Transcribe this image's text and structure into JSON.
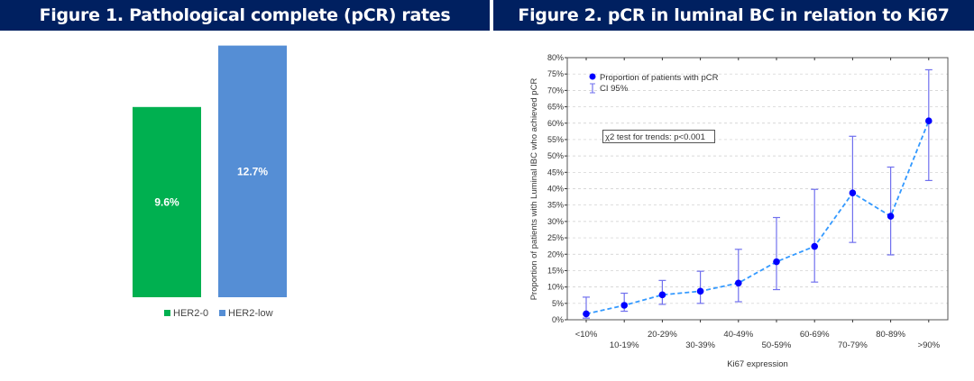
{
  "figure1": {
    "title": "Figure 1. Pathological complete (pCR) rates",
    "chart_data": {
      "type": "bar",
      "categories": [
        "HER2-0",
        "HER2-low"
      ],
      "values": [
        9.6,
        12.7
      ],
      "data_labels": [
        "9.6%",
        "12.7%"
      ],
      "colors": [
        "#00b050",
        "#558ed5"
      ],
      "legend": [
        "HER2-0",
        "HER2-low"
      ],
      "legend_position": "bottom",
      "grid": false
    }
  },
  "figure2": {
    "title": "Figure 2. pCR in luminal BC in relation to Ki67",
    "chart_data": {
      "type": "line",
      "xlabel": "Ki67 expression",
      "ylabel": "Proportion of patients with Luminal IBC who achieved pCR",
      "ylim": [
        0,
        80
      ],
      "yticks": [
        "0%",
        "5%",
        "10%",
        "15%",
        "20%",
        "25%",
        "30%",
        "35%",
        "40%",
        "45%",
        "50%",
        "55%",
        "60%",
        "65%",
        "70%",
        "75%",
        "80%"
      ],
      "categories": [
        "<10%",
        "10-19%",
        "20-29%",
        "30-39%",
        "40-49%",
        "50-59%",
        "60-69%",
        "70-79%",
        "80-89%",
        ">90%"
      ],
      "series": [
        {
          "name": "Proportion of patients with pCR",
          "values": [
            1.8,
            4.4,
            7.6,
            8.7,
            11.2,
            17.7,
            22.4,
            38.7,
            31.6,
            60.7
          ]
        },
        {
          "name": "CI 95%",
          "lower": [
            0.5,
            2.6,
            4.7,
            5.0,
            5.5,
            9.2,
            11.5,
            23.6,
            19.8,
            42.5
          ],
          "upper": [
            6.9,
            8.1,
            12.0,
            14.8,
            21.5,
            31.2,
            39.8,
            56.0,
            46.6,
            76.3
          ]
        }
      ],
      "annotation": "χ2 test for trends: p<0.001",
      "legend_position": "top-left",
      "grid": true,
      "colors": {
        "point": "#0000ff",
        "line": "#3399ff",
        "ci": "#7070ee"
      }
    }
  }
}
